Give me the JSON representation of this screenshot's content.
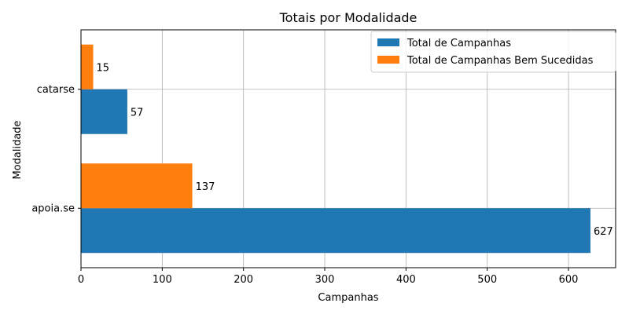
{
  "chart_data": {
    "type": "bar",
    "orientation": "horizontal",
    "title": "Totais por Modalidade",
    "xlabel": "Campanhas",
    "ylabel": "Modalidade",
    "categories": [
      "apoia.se",
      "catarse"
    ],
    "series": [
      {
        "name": "Total de Campanhas",
        "values": [
          627,
          57
        ],
        "color": "#1f77b4"
      },
      {
        "name": "Total de Campanhas Bem Sucedidas",
        "values": [
          137,
          15
        ],
        "color": "#ff7f0e"
      }
    ],
    "xlim": [
      0,
      658
    ],
    "xticks": [
      0,
      100,
      200,
      300,
      400,
      500,
      600
    ],
    "grid": true,
    "legend_position": "top-right"
  }
}
